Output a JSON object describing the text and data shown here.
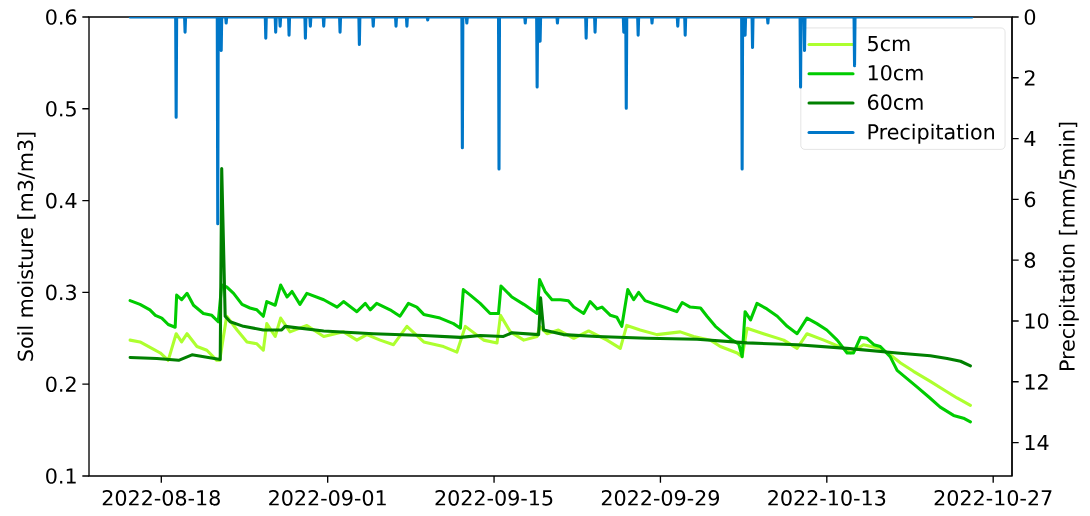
{
  "chart_data": {
    "type": "line",
    "ylabel": "Soil moisture [m3/m3]",
    "y2label": "Precipitation [mm/5min]",
    "xlim": [
      "2022-08-11T22:00",
      "2022-10-28T14:00"
    ],
    "xticks": [
      "2022-08-18",
      "2022-09-01",
      "2022-09-15",
      "2022-09-29",
      "2022-10-13",
      "2022-10-27"
    ],
    "ylim": [
      0.1,
      0.6
    ],
    "yticks": [
      0.1,
      0.2,
      0.3,
      0.4,
      0.5,
      0.6
    ],
    "y2lim": [
      15.1,
      0
    ],
    "y2ticks": [
      0,
      2,
      4,
      6,
      8,
      10,
      12,
      14
    ],
    "legend": "top right",
    "series": [
      {
        "name": "5cm",
        "color": "#adff2f",
        "x": [
          "2022-08-15T09:00",
          "2022-08-16T05:00",
          "2022-08-17T05:00",
          "2022-08-17T22:00",
          "2022-08-18T14:00",
          "2022-08-19T06:00",
          "2022-08-19T17:00",
          "2022-08-20T04:00",
          "2022-08-21T00:00",
          "2022-08-21T20:00",
          "2022-08-22T16:00",
          "2022-08-22T22:00",
          "2022-08-23T12:00",
          "2022-08-24T09:00",
          "2022-08-25T05:00",
          "2022-08-26T01:00",
          "2022-08-26T14:00",
          "2022-08-26T21:00",
          "2022-08-27T14:00",
          "2022-08-28T01:00",
          "2022-08-28T20:00",
          "2022-08-30T06:00",
          "2022-08-31T16:00",
          "2022-09-02T08:00",
          "2022-09-03T11:00",
          "2022-09-04T07:00",
          "2022-09-05T10:00",
          "2022-09-06T13:00",
          "2022-09-07T16:00",
          "2022-09-09T02:00",
          "2022-09-10T18:00",
          "2022-09-11T21:00",
          "2022-09-12T14:00",
          "2022-09-14T03:00",
          "2022-09-15T06:00",
          "2022-09-15T13:00",
          "2022-09-16T09:00",
          "2022-09-17T12:00",
          "2022-09-18T15:00",
          "2022-09-18T20:00",
          "2022-09-19T11:00",
          "2022-09-20T10:00",
          "2022-09-21T17:00",
          "2022-09-22T23:00",
          "2022-09-24T12:00",
          "2022-09-25T15:00",
          "2022-09-26T04:00",
          "2022-09-27T07:00",
          "2022-09-28T17:00",
          "2022-09-30T16:00",
          "2022-10-01T19:00",
          "2022-10-03T05:00",
          "2022-10-04T01:00",
          "2022-10-05T11:00",
          "2022-10-05T21:00",
          "2022-10-06T07:00",
          "2022-10-07T16:00",
          "2022-10-09T09:00",
          "2022-10-10T12:00",
          "2022-10-11T08:00",
          "2022-10-12T18:00",
          "2022-10-14T10:00",
          "2022-10-15T00:00",
          "2022-10-16T02:00",
          "2022-10-17T12:00",
          "2022-10-18T08:00",
          "2022-10-19T05:00",
          "2022-10-20T07:00",
          "2022-10-21T17:00",
          "2022-10-22T20:00",
          "2022-10-23T23:00",
          "2022-10-25T02:00"
        ],
        "values": [
          0.248,
          0.246,
          0.239,
          0.234,
          0.226,
          0.255,
          0.246,
          0.255,
          0.241,
          0.237,
          0.226,
          0.226,
          0.274,
          0.259,
          0.246,
          0.244,
          0.237,
          0.266,
          0.252,
          0.272,
          0.257,
          0.264,
          0.252,
          0.257,
          0.248,
          0.254,
          0.248,
          0.243,
          0.263,
          0.246,
          0.241,
          0.235,
          0.263,
          0.248,
          0.245,
          0.275,
          0.257,
          0.248,
          0.252,
          0.263,
          0.255,
          0.259,
          0.25,
          0.258,
          0.248,
          0.239,
          0.264,
          0.259,
          0.254,
          0.257,
          0.252,
          0.248,
          0.241,
          0.234,
          0.23,
          0.261,
          0.255,
          0.248,
          0.239,
          0.255,
          0.248,
          0.239,
          0.234,
          0.243,
          0.239,
          0.232,
          0.223,
          0.214,
          0.203,
          0.194,
          0.185,
          0.177
        ]
      },
      {
        "name": "10cm",
        "color": "#00cc00",
        "x": [
          "2022-08-15T09:00",
          "2022-08-16T05:00",
          "2022-08-17T01:00",
          "2022-08-17T12:00",
          "2022-08-18T01:00",
          "2022-08-18T14:00",
          "2022-08-19T04:00",
          "2022-08-19T07:00",
          "2022-08-19T17:00",
          "2022-08-20T04:00",
          "2022-08-20T17:00",
          "2022-08-21T13:00",
          "2022-08-22T06:00",
          "2022-08-22T19:00",
          "2022-08-23T02:00",
          "2022-08-23T12:00",
          "2022-08-24T02:00",
          "2022-08-24T19:00",
          "2022-08-25T11:00",
          "2022-08-26T01:00",
          "2022-08-26T14:00",
          "2022-08-26T21:00",
          "2022-08-27T14:00",
          "2022-08-28T01:00",
          "2022-08-28T14:00",
          "2022-08-29T00:00",
          "2022-08-29T16:00",
          "2022-08-30T06:00",
          "2022-08-31T16:00",
          "2022-09-01T19:00",
          "2022-09-02T08:00",
          "2022-09-03T11:00",
          "2022-09-04T04:00",
          "2022-09-04T14:00",
          "2022-09-05T03:00",
          "2022-09-06T06:00",
          "2022-09-07T02:00",
          "2022-09-07T19:00",
          "2022-09-08T12:00",
          "2022-09-09T02:00",
          "2022-09-10T11:00",
          "2022-09-11T14:00",
          "2022-09-12T04:00",
          "2022-09-12T10:00",
          "2022-09-13T00:00",
          "2022-09-13T20:00",
          "2022-09-14T16:00",
          "2022-09-15T09:00",
          "2022-09-15T14:00",
          "2022-09-16T12:00",
          "2022-09-17T12:00",
          "2022-09-18T15:00",
          "2022-09-18T20:00",
          "2022-09-19T07:00",
          "2022-09-19T21:00",
          "2022-09-20T14:00",
          "2022-09-21T06:00",
          "2022-09-21T17:00",
          "2022-09-22T13:00",
          "2022-09-23T02:00",
          "2022-09-23T16:00",
          "2022-09-24T02:00",
          "2022-09-24T19:00",
          "2022-09-25T08:00",
          "2022-09-25T18:00",
          "2022-09-26T06:00",
          "2022-09-26T18:00",
          "2022-09-27T04:00",
          "2022-09-27T17:00",
          "2022-09-28T14:00",
          "2022-09-29T13:00",
          "2022-09-30T09:00",
          "2022-09-30T20:00",
          "2022-10-01T12:00",
          "2022-10-02T09:00",
          "2022-10-02T22:00",
          "2022-10-03T15:00",
          "2022-10-04T11:00",
          "2022-10-05T01:00",
          "2022-10-05T14:00",
          "2022-10-05T21:00",
          "2022-10-06T03:00",
          "2022-10-06T14:00",
          "2022-10-07T03:00",
          "2022-10-07T23:00",
          "2022-10-08T20:00",
          "2022-10-09T16:00",
          "2022-10-10T12:00",
          "2022-10-11T08:00",
          "2022-10-12T04:00",
          "2022-10-13T00:00",
          "2022-10-13T21:00",
          "2022-10-14T17:00",
          "2022-10-15T06:00",
          "2022-10-15T20:00",
          "2022-10-16T09:00",
          "2022-10-16T23:00",
          "2022-10-17T12:00",
          "2022-10-18T08:00",
          "2022-10-18T22:00",
          "2022-10-19T18:00",
          "2022-10-20T14:00",
          "2022-10-21T14:00",
          "2022-10-22T13:00",
          "2022-10-23T16:00",
          "2022-10-24T12:00",
          "2022-10-25T02:00"
        ],
        "values": [
          0.291,
          0.287,
          0.281,
          0.275,
          0.272,
          0.265,
          0.262,
          0.297,
          0.292,
          0.299,
          0.286,
          0.277,
          0.275,
          0.268,
          0.308,
          0.306,
          0.299,
          0.287,
          0.283,
          0.281,
          0.274,
          0.29,
          0.286,
          0.308,
          0.295,
          0.301,
          0.287,
          0.299,
          0.292,
          0.284,
          0.29,
          0.279,
          0.288,
          0.281,
          0.288,
          0.281,
          0.274,
          0.288,
          0.284,
          0.276,
          0.272,
          0.266,
          0.261,
          0.303,
          0.297,
          0.288,
          0.277,
          0.277,
          0.307,
          0.295,
          0.287,
          0.277,
          0.314,
          0.301,
          0.292,
          0.292,
          0.291,
          0.284,
          0.277,
          0.29,
          0.282,
          0.284,
          0.275,
          0.273,
          0.263,
          0.303,
          0.292,
          0.3,
          0.291,
          0.287,
          0.283,
          0.279,
          0.289,
          0.284,
          0.283,
          0.274,
          0.263,
          0.254,
          0.248,
          0.244,
          0.23,
          0.279,
          0.27,
          0.288,
          0.282,
          0.274,
          0.263,
          0.255,
          0.272,
          0.266,
          0.259,
          0.248,
          0.234,
          0.234,
          0.251,
          0.25,
          0.243,
          0.241,
          0.23,
          0.215,
          0.206,
          0.197,
          0.186,
          0.175,
          0.166,
          0.163,
          0.159
        ]
      },
      {
        "name": "60cm",
        "color": "#008000",
        "x": [
          "2022-08-15T09:00",
          "2022-08-17T15:00",
          "2022-08-19T11:00",
          "2022-08-20T14:00",
          "2022-08-22T23:00",
          "2022-08-23T02:00",
          "2022-08-23T09:00",
          "2022-08-23T19:00",
          "2022-08-24T22:00",
          "2022-08-26T14:00",
          "2022-08-28T03:00",
          "2022-08-28T10:00",
          "2022-08-31T16:00",
          "2022-09-04T20:00",
          "2022-09-09T02:00",
          "2022-09-12T04:00",
          "2022-09-13T20:00",
          "2022-09-15T19:00",
          "2022-09-16T12:00",
          "2022-09-18T18:00",
          "2022-09-18T22:00",
          "2022-09-19T04:00",
          "2022-09-20T20:00",
          "2022-09-23T16:00",
          "2022-09-27T21:00",
          "2022-10-02T02:00",
          "2022-10-06T07:00",
          "2022-10-10T12:00",
          "2022-10-14T17:00",
          "2022-10-18T22:00",
          "2022-10-21T17:00",
          "2022-10-23T03:00",
          "2022-10-24T06:00",
          "2022-10-25T02:00"
        ],
        "values": [
          0.229,
          0.228,
          0.226,
          0.232,
          0.227,
          0.435,
          0.274,
          0.268,
          0.263,
          0.259,
          0.259,
          0.263,
          0.258,
          0.255,
          0.253,
          0.251,
          0.253,
          0.252,
          0.256,
          0.254,
          0.294,
          0.259,
          0.254,
          0.252,
          0.25,
          0.249,
          0.245,
          0.243,
          0.239,
          0.234,
          0.231,
          0.228,
          0.225,
          0.22
        ]
      },
      {
        "name": "Precipitation",
        "color": "#0077c8",
        "axis": "y2",
        "x": [
          "2022-08-15T09:00",
          "2022-08-19T05:00",
          "2022-08-19T06:00",
          "2022-08-19T07:00",
          "2022-08-19T23:00",
          "2022-08-20T00:00",
          "2022-08-20T01:00",
          "2022-08-22T17:00",
          "2022-08-22T18:00",
          "2022-08-22T19:00",
          "2022-08-23T00:00",
          "2022-08-23T01:00",
          "2022-08-23T02:00",
          "2022-08-23T10:00",
          "2022-08-23T11:00",
          "2022-08-23T12:00",
          "2022-08-26T18:00",
          "2022-08-26T19:00",
          "2022-08-26T20:00",
          "2022-08-27T14:00",
          "2022-08-27T15:00",
          "2022-08-27T16:00",
          "2022-08-27T23:00",
          "2022-08-28T00:00",
          "2022-08-28T01:00",
          "2022-08-28T17:00",
          "2022-08-28T18:00",
          "2022-08-28T19:00",
          "2022-08-30T02:00",
          "2022-08-30T03:00",
          "2022-08-30T04:00",
          "2022-08-30T12:00",
          "2022-08-30T13:00",
          "2022-08-30T14:00",
          "2022-08-31T15:00",
          "2022-08-31T16:00",
          "2022-08-31T17:00",
          "2022-09-02T00:00",
          "2022-09-02T01:00",
          "2022-09-02T02:00",
          "2022-09-03T15:00",
          "2022-09-03T16:00",
          "2022-09-03T17:00",
          "2022-09-04T19:00",
          "2022-09-04T20:00",
          "2022-09-04T21:00",
          "2022-09-06T17:00",
          "2022-09-06T18:00",
          "2022-09-06T19:00",
          "2022-09-07T15:00",
          "2022-09-07T16:00",
          "2022-09-07T17:00",
          "2022-09-09T09:00",
          "2022-09-09T10:00",
          "2022-09-09T11:00",
          "2022-09-12T07:00",
          "2022-09-12T08:00",
          "2022-09-12T09:00",
          "2022-09-12T16:00",
          "2022-09-12T17:00",
          "2022-09-12T18:00",
          "2022-09-15T09:00",
          "2022-09-15T10:00",
          "2022-09-15T11:00",
          "2022-09-17T14:00",
          "2022-09-17T15:00",
          "2022-09-17T16:00",
          "2022-09-18T14:00",
          "2022-09-18T15:00",
          "2022-09-18T16:00",
          "2022-09-18T20:00",
          "2022-09-18T21:00",
          "2022-09-18T22:00",
          "2022-09-20T07:00",
          "2022-09-20T08:00",
          "2022-09-20T09:00",
          "2022-09-22T17:00",
          "2022-09-22T18:00",
          "2022-09-22T19:00",
          "2022-09-23T11:00",
          "2022-09-23T12:00",
          "2022-09-23T13:00",
          "2022-09-25T21:00",
          "2022-09-25T22:00",
          "2022-09-25T23:00",
          "2022-09-26T02:00",
          "2022-09-26T03:00",
          "2022-09-26T04:00",
          "2022-09-27T02:00",
          "2022-09-27T03:00",
          "2022-09-27T04:00",
          "2022-09-28T06:00",
          "2022-09-28T07:00",
          "2022-09-28T08:00",
          "2022-09-30T10:00",
          "2022-09-30T11:00",
          "2022-09-30T12:00",
          "2022-10-01T01:00",
          "2022-10-01T02:00",
          "2022-10-01T03:00",
          "2022-10-05T20:00",
          "2022-10-05T21:00",
          "2022-10-05T22:00",
          "2022-10-06T02:00",
          "2022-10-06T03:00",
          "2022-10-06T04:00",
          "2022-10-06T17:00",
          "2022-10-06T18:00",
          "2022-10-06T19:00",
          "2022-10-08T00:00",
          "2022-10-08T01:00",
          "2022-10-08T02:00",
          "2022-10-10T18:00",
          "2022-10-10T19:00",
          "2022-10-10T20:00",
          "2022-10-11T02:00",
          "2022-10-11T03:00",
          "2022-10-11T04:00",
          "2022-10-15T07:00",
          "2022-10-15T08:00",
          "2022-10-15T09:00",
          "2022-10-25T05:00"
        ],
        "values": [
          0,
          0,
          3.3,
          0,
          0,
          0.5,
          0,
          0,
          6.8,
          0,
          0,
          1.1,
          0,
          0,
          0.2,
          0,
          0,
          0.7,
          0,
          0,
          0.5,
          0,
          0,
          0.3,
          0,
          0,
          0.6,
          0,
          0,
          0.7,
          0,
          0,
          0.3,
          0,
          0,
          0.3,
          0,
          0,
          0.5,
          0,
          0,
          0.9,
          0,
          0,
          0.3,
          0,
          0,
          0.3,
          0,
          0,
          0.3,
          0,
          0,
          0.1,
          0,
          0,
          4.3,
          0,
          0,
          0.2,
          0,
          0,
          5.0,
          0,
          0,
          0.2,
          0,
          0,
          2.3,
          0,
          0,
          0.8,
          0,
          0,
          0.2,
          0,
          0,
          0.7,
          0,
          0,
          0.5,
          0,
          0,
          0.5,
          0,
          0,
          3.0,
          0,
          0,
          0.6,
          0,
          0,
          0.2,
          0,
          0,
          0.3,
          0,
          0,
          0.6,
          0,
          0,
          5.0,
          0,
          0,
          0.6,
          0,
          0,
          1.0,
          0,
          0,
          0.2,
          0,
          0,
          2.3,
          0,
          0,
          1.1,
          0,
          0,
          1.6,
          0,
          0
        ]
      }
    ]
  }
}
